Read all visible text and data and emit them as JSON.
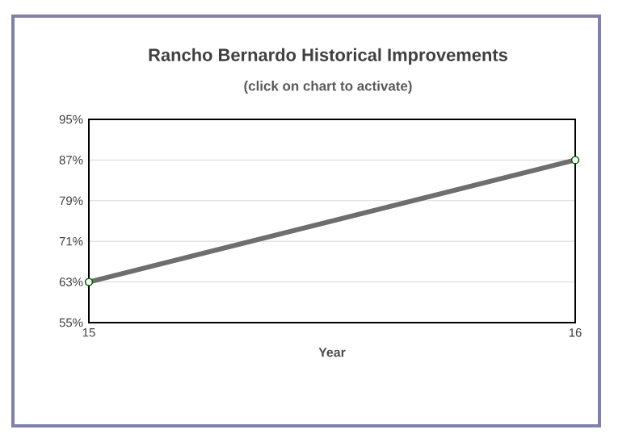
{
  "chart_data": {
    "type": "line",
    "title": "Rancho Bernardo Historical Improvements",
    "subtitle": "(click on chart to activate)",
    "xlabel": "Year",
    "x": [
      15,
      16
    ],
    "series": [
      {
        "color": "#6e6e6e",
        "values": [
          63,
          87
        ]
      }
    ],
    "xlim": [
      15,
      16
    ],
    "xticks": [
      15,
      16
    ],
    "ylim": [
      55,
      95
    ],
    "yticks": [
      {
        "value": 55,
        "label": "55%"
      },
      {
        "value": 63,
        "label": "63%"
      },
      {
        "value": 71,
        "label": "71%"
      },
      {
        "value": 79,
        "label": "79%"
      },
      {
        "value": 87,
        "label": "87%"
      },
      {
        "value": 95,
        "label": "95%"
      }
    ],
    "grid": "y",
    "marker": "circle",
    "line_style": "solid"
  }
}
